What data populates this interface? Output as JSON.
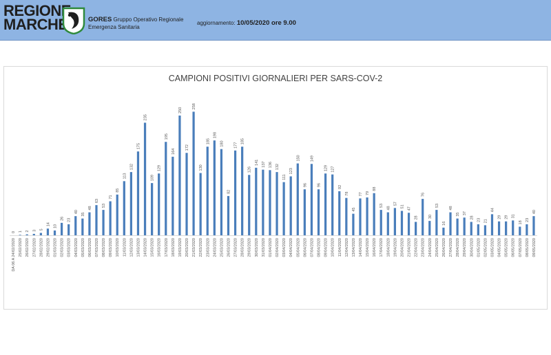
{
  "header": {
    "region_line1": "REGIONE",
    "region_line2": "MARCHE",
    "org_name": "GORES",
    "org_desc1": "Gruppo Operativo Regionale",
    "org_desc2": "Emergenza Sanitaria",
    "update_label": "aggiornamento:",
    "update_value": "10/05/2020 ore 9.00"
  },
  "colors": {
    "header_bg": "#8eb4e3",
    "bar": "#4a7ebb",
    "logo_green": "#2f8a3c"
  },
  "chart_data": {
    "type": "bar",
    "title": "CAMPIONI POSITIVI GIORNALIERI PER SARS-COV-2",
    "xlabel": "",
    "ylabel": "",
    "ylim": [
      0,
      270
    ],
    "grid": false,
    "categories": [
      "DA 06 A 24/02/2020",
      "25/02/2020",
      "26/02/2020",
      "27/02/2020",
      "28/02/2020",
      "29/02/2020",
      "01/03/2020",
      "02/03/2020",
      "03/03/2020",
      "04/03/2020",
      "05/03/2020",
      "06/03/2020",
      "07/03/2020",
      "08/03/2020",
      "09/03/2020",
      "10/03/2020",
      "11/03/2020",
      "12/03/2020",
      "13/03/2020",
      "14/03/2020",
      "15/03/2020",
      "16/03/2020",
      "17/03/2020",
      "18/03/2020",
      "19/03/2020",
      "20/03/2020",
      "21/03/2020",
      "22/03/2020",
      "23/03/2020",
      "24/03/2020",
      "25/03/2020",
      "26/03/2020",
      "27/03/2020",
      "28/03/2020",
      "29/03/2020",
      "30/03/2020",
      "31/03/2020",
      "01/04/2020",
      "02/04/2020",
      "03/04/2020",
      "04/04/2020",
      "05/04/2020",
      "06/04/2020",
      "07/04/2020",
      "08/04/2020",
      "09/04/2020",
      "10/04/2020",
      "11/04/2020",
      "12/04/2020",
      "13/04/2020",
      "14/04/2020",
      "15/04/2020",
      "16/04/2020",
      "17/04/2020",
      "18/04/2020",
      "19/04/2020",
      "20/04/2020",
      "21/04/2020",
      "22/04/2020",
      "23/04/2020",
      "24/04/2020",
      "25/04/2020",
      "26/04/2020",
      "27/04/2020",
      "28/04/2020",
      "29/04/2020",
      "30/04/2020",
      "01/05/2020",
      "02/05/2020",
      "03/05/2020",
      "04/05/2020",
      "05/05/2020",
      "06/05/2020",
      "07/05/2020",
      "08/05/2020",
      "09/05/2020"
    ],
    "values": [
      0,
      1,
      2,
      3,
      5,
      14,
      10,
      26,
      23,
      40,
      35,
      48,
      63,
      53,
      71,
      85,
      113,
      132,
      175,
      235,
      109,
      129,
      195,
      164,
      250,
      172,
      258,
      130,
      185,
      198,
      180,
      82,
      177,
      185,
      126,
      141,
      137,
      136,
      132,
      111,
      123,
      150,
      96,
      149,
      96,
      129,
      127,
      92,
      78,
      45,
      77,
      79,
      88,
      53,
      48,
      57,
      51,
      47,
      28,
      76,
      30,
      53,
      16,
      48,
      35,
      37,
      28,
      23,
      21,
      44,
      29,
      29,
      31,
      18,
      23,
      40
    ]
  }
}
